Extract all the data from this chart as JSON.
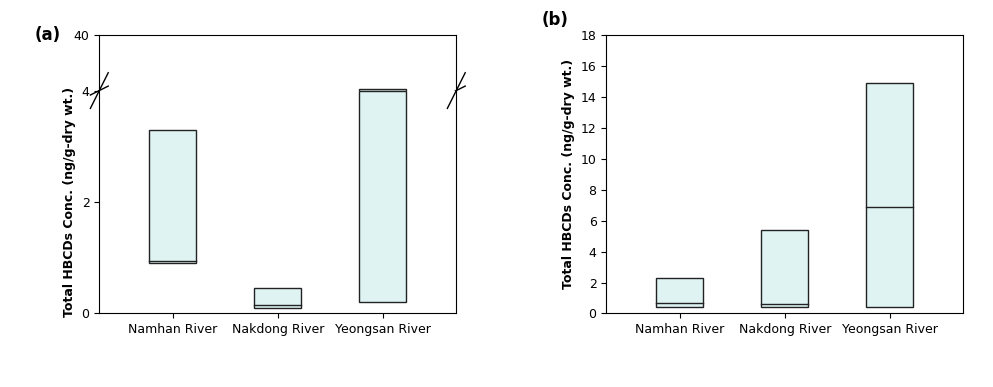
{
  "panel_a": {
    "label": "(a)",
    "rivers": [
      "Namhan River",
      "Nakdong River",
      "Yeongsan River"
    ],
    "lower_boxes": [
      {
        "q1": 0.9,
        "median": 0.95,
        "q3": 3.3
      },
      {
        "q1": 0.1,
        "median": 0.15,
        "q3": 0.45
      },
      {
        "q1": 0.2,
        "median": 4.0,
        "q3": 4.0
      }
    ],
    "upper_boxes": [
      null,
      null,
      {
        "q1": 4.0,
        "median": 4.8,
        "q3": 4.8
      }
    ],
    "ylim_lower": [
      0,
      4
    ],
    "ylim_upper": [
      4,
      40
    ],
    "yticks_lower": [
      0,
      2,
      4
    ],
    "yticks_upper": [
      40
    ],
    "ylabel": "Total HBCDs Conc. (ng/g-dry wt.)",
    "box_color": "#dff3f3",
    "box_edgecolor": "#222222",
    "lw": 1.0
  },
  "panel_b": {
    "label": "(b)",
    "rivers": [
      "Namhan River",
      "Nakdong River",
      "Yeongsan River"
    ],
    "boxes": [
      {
        "q1": 0.4,
        "median": 0.7,
        "q3": 2.3
      },
      {
        "q1": 0.4,
        "median": 0.6,
        "q3": 5.4
      },
      {
        "q1": 0.4,
        "median": 6.9,
        "q3": 14.9
      }
    ],
    "ylim": [
      0,
      18
    ],
    "yticks": [
      0,
      2,
      4,
      6,
      8,
      10,
      12,
      14,
      16,
      18
    ],
    "ylabel": "Total HBCDs Conc. (ng/g-dry wt.)",
    "box_color": "#dff3f3",
    "box_edgecolor": "#222222",
    "lw": 1.0
  },
  "figure_width": 9.93,
  "figure_height": 3.87,
  "dpi": 100,
  "bar_width": 0.45
}
